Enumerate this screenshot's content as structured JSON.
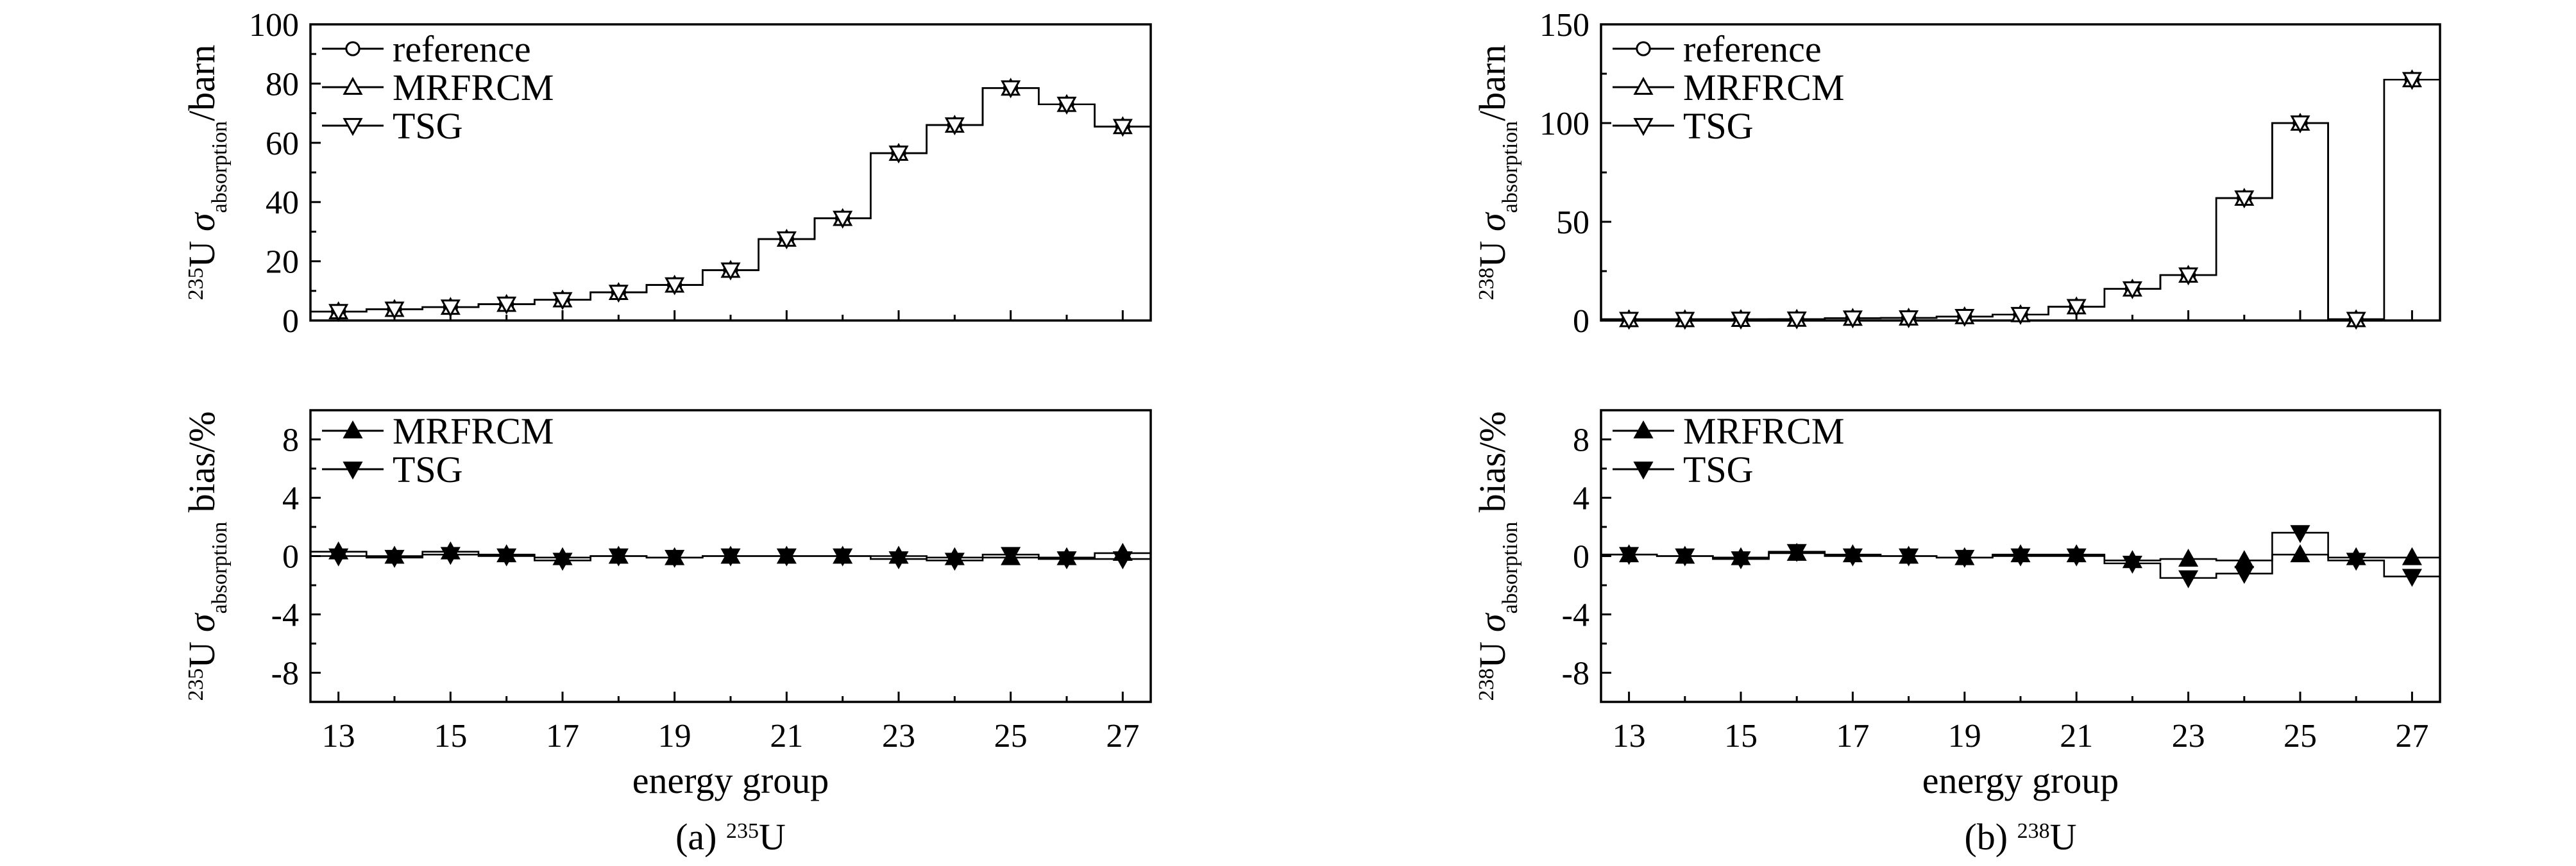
{
  "chart_data": [
    {
      "id": "a",
      "type": "line",
      "caption": {
        "prefix": "(a) ",
        "sup": "235",
        "main": "U"
      },
      "x": [
        13,
        14,
        15,
        16,
        17,
        18,
        19,
        20,
        21,
        22,
        23,
        24,
        25,
        26,
        27
      ],
      "xticks": [
        "13",
        "15",
        "17",
        "19",
        "21",
        "23",
        "25",
        "27"
      ],
      "xlabel": "energy group",
      "top": {
        "ylim": [
          0,
          100
        ],
        "yticks": [
          "0",
          "20",
          "40",
          "60",
          "80",
          "100"
        ],
        "ylabel": {
          "sup": "235",
          "nuc": "U ",
          "sym": "σ",
          "sub": "absorption",
          "suffix": "/barn"
        },
        "legend": [
          "reference",
          "MRFRCM",
          "TSG"
        ],
        "series": [
          {
            "name": "reference",
            "marker": "circle",
            "values": [
              3,
              3.8,
              4.5,
              5.5,
              7,
              9.5,
              12,
              17,
              27.5,
              34.5,
              56.5,
              66,
              78.5,
              73,
              65.5
            ]
          },
          {
            "name": "MRFRCM",
            "marker": "triangle-up",
            "values": [
              3,
              3.8,
              4.5,
              5.5,
              7,
              9.5,
              12,
              17,
              27.5,
              34.5,
              56.5,
              66,
              78.5,
              73,
              65.5
            ]
          },
          {
            "name": "TSG",
            "marker": "triangle-down",
            "values": [
              3,
              3.8,
              4.5,
              5.5,
              7,
              9.5,
              12,
              17,
              27.5,
              34.5,
              56.5,
              66,
              78.5,
              73,
              65.5
            ]
          }
        ]
      },
      "bottom": {
        "ylim": [
          -10,
          10
        ],
        "yticks": [
          "-8",
          "-4",
          "0",
          "4",
          "8"
        ],
        "ylabel": {
          "sup": "235",
          "nuc": "U ",
          "sym": "σ",
          "sub": "absorption",
          "suffix": " bias/%"
        },
        "legend": [
          "MRFRCM",
          "TSG"
        ],
        "series": [
          {
            "name": "MRFRCM",
            "marker": "filled-triangle-up",
            "values": [
              0.3,
              0.0,
              0.3,
              0.1,
              -0.1,
              0.0,
              -0.1,
              0.0,
              0.0,
              0.0,
              0.0,
              -0.1,
              -0.1,
              -0.1,
              0.2
            ]
          },
          {
            "name": "TSG",
            "marker": "filled-triangle-down",
            "values": [
              0.0,
              -0.1,
              0.1,
              0.0,
              -0.3,
              0.0,
              -0.1,
              0.0,
              0.0,
              0.0,
              -0.2,
              -0.3,
              0.1,
              -0.2,
              -0.2
            ]
          }
        ]
      }
    },
    {
      "id": "b",
      "type": "line",
      "caption": {
        "prefix": "(b) ",
        "sup": "238",
        "main": "U"
      },
      "x": [
        13,
        14,
        15,
        16,
        17,
        18,
        19,
        20,
        21,
        22,
        23,
        24,
        25,
        26,
        27
      ],
      "xticks": [
        "13",
        "15",
        "17",
        "19",
        "21",
        "23",
        "25",
        "27"
      ],
      "xlabel": "energy group",
      "top": {
        "ylim": [
          0,
          150
        ],
        "yticks": [
          "0",
          "50",
          "100",
          "150"
        ],
        "ylabel": {
          "sup": "238",
          "nuc": "U ",
          "sym": "σ",
          "sub": "absorption",
          "suffix": "/barn"
        },
        "legend": [
          "reference",
          "MRFRCM",
          "TSG"
        ],
        "series": [
          {
            "name": "reference",
            "marker": "circle",
            "values": [
              0.5,
              0.5,
              0.6,
              0.7,
              1.2,
              1.3,
              2,
              3,
              7,
              16,
              23,
              62,
              100,
              0.5,
              122
            ]
          },
          {
            "name": "MRFRCM",
            "marker": "triangle-up",
            "values": [
              0.5,
              0.5,
              0.6,
              0.7,
              1.2,
              1.3,
              2,
              3,
              7,
              16,
              23,
              62,
              100,
              0.5,
              122
            ]
          },
          {
            "name": "TSG",
            "marker": "triangle-down",
            "values": [
              0.5,
              0.5,
              0.6,
              0.7,
              1.2,
              1.3,
              2,
              3,
              7,
              16,
              23,
              62,
              100,
              0.5,
              122
            ]
          }
        ]
      },
      "bottom": {
        "ylim": [
          -10,
          10
        ],
        "yticks": [
          "-8",
          "-4",
          "0",
          "4",
          "8"
        ],
        "ylabel": {
          "sup": "238",
          "nuc": "U ",
          "sym": "σ",
          "sub": "absorption",
          "suffix": " bias/%"
        },
        "legend": [
          "MRFRCM",
          "TSG"
        ],
        "series": [
          {
            "name": "MRFRCM",
            "marker": "filled-triangle-up",
            "values": [
              0.1,
              0.0,
              -0.1,
              0.2,
              0.1,
              0.0,
              -0.1,
              0.1,
              0.1,
              -0.3,
              -0.2,
              -0.3,
              0.1,
              -0.1,
              -0.1
            ]
          },
          {
            "name": "TSG",
            "marker": "filled-triangle-down",
            "values": [
              0.1,
              0.0,
              -0.2,
              0.3,
              0.0,
              0.0,
              -0.1,
              0.0,
              0.0,
              -0.5,
              -1.5,
              -1.2,
              1.6,
              -0.3,
              -1.4
            ]
          }
        ]
      }
    }
  ]
}
